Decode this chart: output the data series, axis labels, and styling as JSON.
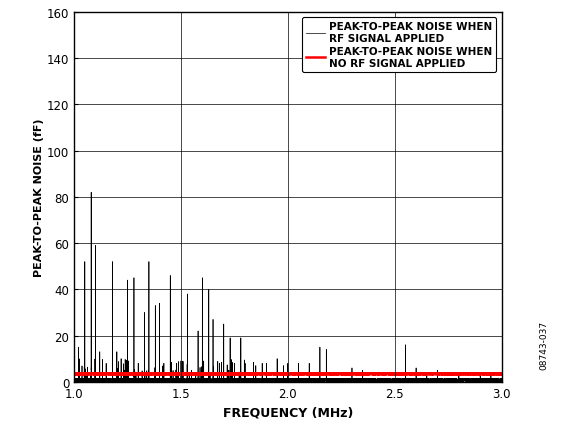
{
  "title": "",
  "xlabel": "FREQUENCY (MHz)",
  "ylabel": "PEAK-TO-PEAK NOISE (fF)",
  "xlim": [
    1.0,
    3.0
  ],
  "ylim": [
    0,
    160
  ],
  "yticks": [
    0,
    20,
    40,
    60,
    80,
    100,
    120,
    140,
    160
  ],
  "xticks": [
    1.0,
    1.5,
    2.0,
    2.5,
    3.0
  ],
  "grid_color": "#000000",
  "bg_color": "#ffffff",
  "red_line_value": 3.5,
  "legend_entries": [
    "PEAK-TO-PEAK NOISE WHEN\nRF SIGNAL APPLIED",
    "PEAK-TO-PEAK NOISE WHEN\nNO RF SIGNAL APPLIED"
  ],
  "legend_colors": [
    "#000000",
    "#ff0000"
  ],
  "watermark": "08743-037",
  "spike_peaks": [
    [
      1.02,
      15
    ],
    [
      1.05,
      52
    ],
    [
      1.08,
      82
    ],
    [
      1.1,
      59
    ],
    [
      1.12,
      13
    ],
    [
      1.15,
      8
    ],
    [
      1.18,
      52
    ],
    [
      1.2,
      13
    ],
    [
      1.22,
      10
    ],
    [
      1.25,
      44
    ],
    [
      1.28,
      45
    ],
    [
      1.3,
      8
    ],
    [
      1.33,
      30
    ],
    [
      1.35,
      52
    ],
    [
      1.38,
      33
    ],
    [
      1.4,
      34
    ],
    [
      1.42,
      8
    ],
    [
      1.45,
      46
    ],
    [
      1.48,
      8
    ],
    [
      1.5,
      9
    ],
    [
      1.53,
      38
    ],
    [
      1.55,
      5
    ],
    [
      1.58,
      22
    ],
    [
      1.6,
      45
    ],
    [
      1.63,
      40
    ],
    [
      1.65,
      27
    ],
    [
      1.68,
      8
    ],
    [
      1.7,
      25
    ],
    [
      1.73,
      19
    ],
    [
      1.75,
      8
    ],
    [
      1.78,
      19
    ],
    [
      1.8,
      8
    ],
    [
      1.85,
      7
    ],
    [
      1.88,
      8
    ],
    [
      1.9,
      8
    ],
    [
      1.95,
      10
    ],
    [
      1.98,
      7
    ],
    [
      2.0,
      8
    ],
    [
      2.05,
      8
    ],
    [
      2.1,
      8
    ],
    [
      2.15,
      15
    ],
    [
      2.18,
      14
    ],
    [
      2.3,
      6
    ],
    [
      2.35,
      5
    ],
    [
      2.55,
      16
    ],
    [
      2.6,
      6
    ],
    [
      2.65,
      4
    ],
    [
      2.7,
      5
    ],
    [
      2.8,
      4
    ],
    [
      2.9,
      3
    ],
    [
      2.95,
      3
    ]
  ]
}
